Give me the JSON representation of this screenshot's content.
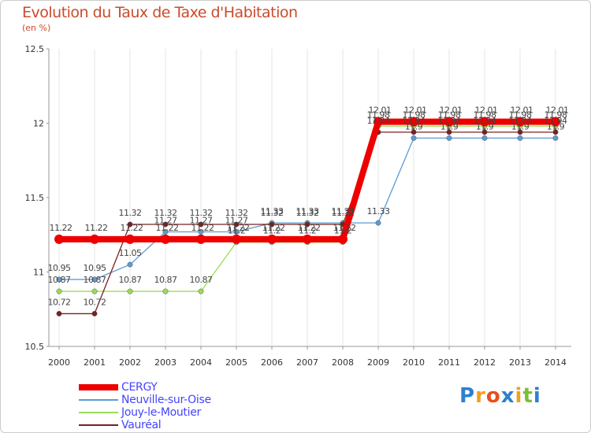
{
  "chart_data": {
    "type": "line",
    "title": "Evolution du Taux de Taxe d'Habitation",
    "ylabel": "(en %)",
    "xlabel": "",
    "ylim": [
      10.5,
      12.5
    ],
    "y_ticks": [
      "10.5",
      "11",
      "11.5",
      "12",
      "12.5"
    ],
    "x": [
      "2000",
      "2001",
      "2002",
      "2003",
      "2004",
      "2005",
      "2006",
      "2007",
      "2008",
      "2009",
      "2010",
      "2011",
      "2012",
      "2013",
      "2014"
    ],
    "series": [
      {
        "name": "CERGY",
        "color": "#ee0000",
        "values": [
          11.22,
          11.22,
          11.22,
          11.22,
          11.22,
          11.22,
          11.22,
          11.22,
          11.22,
          12.01,
          12.01,
          12.01,
          12.01,
          12.01,
          12.01
        ],
        "labels": [
          "11.22",
          "11.22",
          "11.22",
          "11.22",
          "11.22",
          "11.22",
          "11.22",
          "11.22",
          "11.22",
          "12.01",
          "12.01",
          "12.01",
          "12.01",
          "12.01",
          "12.01"
        ]
      },
      {
        "name": "Neuville-sur-Oise",
        "color": "#5b9bd5",
        "values": [
          10.95,
          10.95,
          11.05,
          11.27,
          11.27,
          11.27,
          11.33,
          11.33,
          11.33,
          11.33,
          11.9,
          11.9,
          11.9,
          11.9,
          11.9
        ],
        "labels": [
          "10.95",
          "10.95",
          "11.05",
          "11.27",
          "11.27",
          "11.27",
          "11.33",
          "11.33",
          "11.33",
          "11.33",
          "11.9",
          "11.9",
          "11.9",
          "11.9",
          "11.9"
        ]
      },
      {
        "name": "Jouy-le-Moutier",
        "color": "#99dd55",
        "values": [
          10.87,
          10.87,
          10.87,
          10.87,
          10.87,
          11.2,
          11.2,
          11.2,
          11.2,
          11.98,
          11.98,
          11.98,
          11.98,
          11.98,
          11.98
        ],
        "labels": [
          "10.87",
          "10.87",
          "10.87",
          "10.87",
          "10.87",
          "11.2",
          "11.2",
          "11.2",
          "11.2",
          "11.98",
          "11.98",
          "11.98",
          "11.98",
          "11.98",
          "11.98"
        ]
      },
      {
        "name": "Vauréal",
        "color": "#772222",
        "values": [
          10.72,
          10.72,
          11.32,
          11.32,
          11.32,
          11.32,
          11.32,
          11.32,
          11.32,
          11.94,
          11.94,
          11.94,
          11.94,
          11.94,
          11.94
        ],
        "labels": [
          "10.72",
          "10.72",
          "11.32",
          "11.32",
          "11.32",
          "11.32",
          "11.32",
          "11.32",
          "11.32",
          "11.94",
          "11.94",
          "11.94",
          "11.94",
          "11.94",
          "11.94"
        ]
      }
    ],
    "legend_position": "bottom-left"
  },
  "logo": {
    "text_letters": [
      "P",
      "r",
      "o",
      "x",
      "i",
      "t",
      "i"
    ],
    "letter_colors": [
      "#2e7fd0",
      "#f0a020",
      "#e94e1b",
      "#2e7fd0",
      "#f0a020",
      "#7abf3a",
      "#2e7fd0"
    ]
  }
}
